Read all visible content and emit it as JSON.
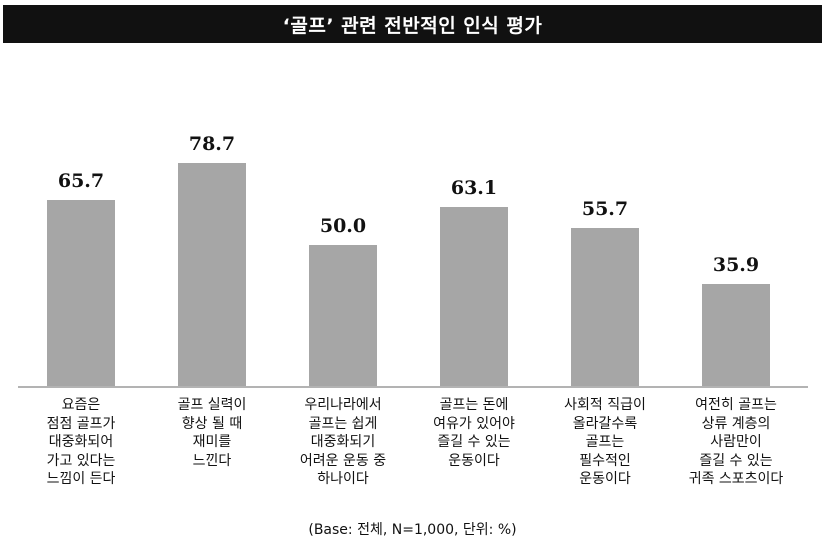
{
  "colors": {
    "title_background": "#111111",
    "title_text": "#ffffff",
    "bar": "#a6a6a6",
    "axis": "#b3b3b3"
  },
  "chart_data": {
    "type": "bar",
    "title": "‘골프’ 관련 전반적인 인식 평가",
    "categories": [
      [
        "요즘은",
        "점점 골프가",
        "대중화되어",
        "가고 있다는",
        "느낌이 든다"
      ],
      [
        "골프 실력이",
        "향상 될 때",
        "재미를",
        "느낀다"
      ],
      [
        "우리나라에서",
        "골프는 쉽게",
        "대중화되기",
        "어려운 운동 중",
        "하나이다"
      ],
      [
        "골프는 돈에",
        "여유가 있어야",
        "즐길 수 있는",
        "운동이다"
      ],
      [
        "사회적 직급이",
        "올라갈수록",
        "골프는",
        "필수적인",
        "운동이다"
      ],
      [
        "여전히 골프는",
        "상류 계층의",
        "사람만이",
        "즐길 수 있는",
        "귀족 스포츠이다"
      ]
    ],
    "values": [
      65.7,
      78.7,
      50.0,
      63.1,
      55.7,
      35.9
    ],
    "value_labels": [
      "65.7",
      "78.7",
      "50.0",
      "63.1",
      "55.7",
      "35.9"
    ],
    "ylim": [
      0,
      100
    ],
    "grid": false,
    "legend": false,
    "note": "(Base: 전체, N=1,000, 단위: %)"
  }
}
